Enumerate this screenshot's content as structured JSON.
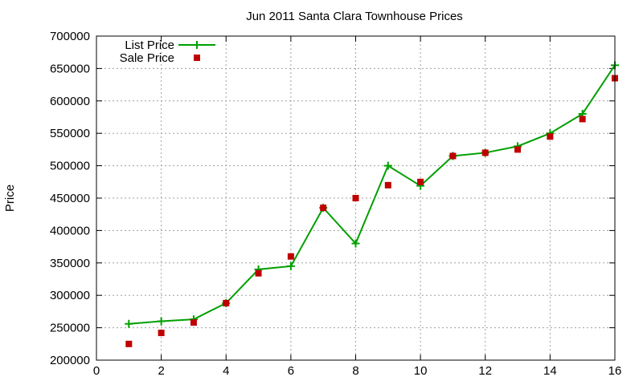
{
  "chart_data": {
    "type": "line",
    "title": "Jun 2011 Santa Clara Townhouse Prices",
    "xlabel": "",
    "ylabel": "Price",
    "xlim": [
      0,
      16
    ],
    "ylim": [
      200000,
      700000
    ],
    "xticks": [
      0,
      2,
      4,
      6,
      8,
      10,
      12,
      14,
      16
    ],
    "yticks": [
      200000,
      250000,
      300000,
      350000,
      400000,
      450000,
      500000,
      550000,
      600000,
      650000,
      700000
    ],
    "grid": true,
    "legend_position": "top-left",
    "series": [
      {
        "name": "List Price",
        "type": "line",
        "marker": "plus",
        "color": "#00a000",
        "x": [
          1,
          2,
          3,
          4,
          5,
          6,
          7,
          8,
          9,
          10,
          11,
          12,
          13,
          14,
          15,
          16
        ],
        "y": [
          256000,
          260000,
          263000,
          288000,
          340000,
          345000,
          435000,
          380000,
          500000,
          469000,
          515000,
          520000,
          530000,
          550000,
          580000,
          655000
        ]
      },
      {
        "name": "Sale Price",
        "type": "scatter",
        "marker": "square",
        "color": "#c00000",
        "x": [
          1,
          2,
          3,
          4,
          5,
          6,
          7,
          8,
          9,
          10,
          11,
          12,
          13,
          14,
          15,
          16
        ],
        "y": [
          225000,
          242000,
          258000,
          288000,
          334000,
          360000,
          435000,
          450000,
          470000,
          475000,
          515000,
          520000,
          525000,
          545000,
          572000,
          635000
        ]
      }
    ]
  }
}
